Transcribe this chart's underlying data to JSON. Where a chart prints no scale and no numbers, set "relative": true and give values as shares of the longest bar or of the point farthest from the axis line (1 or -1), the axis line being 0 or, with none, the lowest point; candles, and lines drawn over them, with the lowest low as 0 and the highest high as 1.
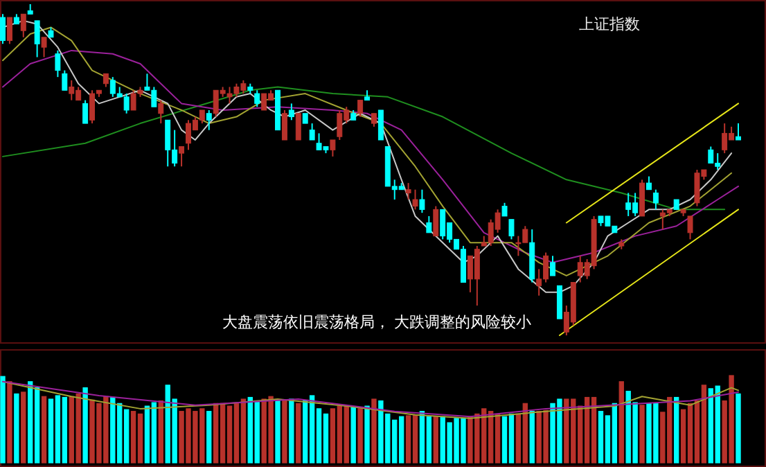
{
  "chart_data": [
    {
      "type": "candlestick",
      "title": "上证指数",
      "annotations": [
        "大盘震荡依旧震荡格局， 大跌调整的风险较小"
      ],
      "relative": true,
      "categories": [
        null,
        null,
        null,
        null,
        null,
        null,
        null,
        null,
        null,
        null,
        null,
        null,
        null,
        null,
        null,
        null,
        null,
        null,
        null,
        null,
        null,
        null,
        null,
        null,
        null,
        null,
        null,
        null,
        null,
        null,
        null,
        null,
        null,
        null,
        null,
        null,
        null,
        null,
        null,
        null,
        null,
        null,
        null,
        null,
        null,
        null,
        null,
        null,
        null,
        null,
        null,
        null,
        null,
        null,
        null,
        null,
        null,
        null,
        null,
        null,
        null,
        null,
        null,
        null,
        null,
        null,
        null,
        null,
        null,
        null,
        null,
        null,
        null,
        null,
        null,
        null,
        null,
        null,
        null,
        null,
        null,
        null,
        null,
        null,
        null,
        null,
        null,
        null,
        null,
        null,
        null,
        null,
        null,
        null,
        null,
        null,
        null,
        null,
        null,
        null,
        null,
        null,
        null,
        null,
        null,
        null,
        null,
        null
      ],
      "ohlc": [
        [
          0.96,
          0.97,
          0.88,
          0.89
        ],
        [
          0.89,
          0.96,
          0.88,
          0.96
        ],
        [
          0.96,
          0.97,
          0.94,
          0.94
        ],
        [
          0.92,
          0.97,
          0.9,
          0.97
        ],
        [
          0.98,
          1.0,
          0.97,
          0.97
        ],
        [
          0.95,
          0.95,
          0.84,
          0.88
        ],
        [
          0.87,
          0.9,
          0.84,
          0.9
        ],
        [
          0.92,
          0.93,
          0.9,
          0.9
        ],
        [
          0.85,
          0.86,
          0.78,
          0.8
        ],
        [
          0.79,
          0.8,
          0.74,
          0.74
        ],
        [
          0.73,
          0.77,
          0.71,
          0.75
        ],
        [
          0.71,
          0.75,
          0.71,
          0.74
        ],
        [
          0.7,
          0.71,
          0.64,
          0.64
        ],
        [
          0.65,
          0.74,
          0.64,
          0.73
        ],
        [
          0.73,
          0.74,
          0.72,
          0.74
        ],
        [
          0.76,
          0.79,
          0.75,
          0.79
        ],
        [
          0.77,
          0.78,
          0.72,
          0.73
        ],
        [
          0.73,
          0.75,
          0.72,
          0.72
        ],
        [
          0.72,
          0.73,
          0.67,
          0.68
        ],
        [
          0.68,
          0.74,
          0.68,
          0.73
        ],
        [
          0.73,
          0.75,
          0.72,
          0.74
        ],
        [
          0.75,
          0.79,
          0.74,
          0.74
        ],
        [
          0.74,
          0.75,
          0.69,
          0.69
        ],
        [
          0.67,
          0.71,
          0.64,
          0.7
        ],
        [
          0.65,
          0.65,
          0.51,
          0.56
        ],
        [
          0.56,
          0.62,
          0.51,
          0.52
        ],
        [
          0.55,
          0.57,
          0.51,
          0.57
        ],
        [
          0.58,
          0.65,
          0.56,
          0.64
        ],
        [
          0.62,
          0.66,
          0.62,
          0.65
        ],
        [
          0.65,
          0.68,
          0.64,
          0.68
        ],
        [
          0.67,
          0.68,
          0.62,
          0.65
        ],
        [
          0.67,
          0.74,
          0.66,
          0.74
        ],
        [
          0.73,
          0.75,
          0.72,
          0.74
        ],
        [
          0.72,
          0.75,
          0.7,
          0.73
        ],
        [
          0.73,
          0.76,
          0.72,
          0.75
        ],
        [
          0.74,
          0.77,
          0.73,
          0.76
        ],
        [
          0.75,
          0.76,
          0.73,
          0.74
        ],
        [
          0.73,
          0.74,
          0.69,
          0.7
        ],
        [
          0.68,
          0.73,
          0.68,
          0.73
        ],
        [
          0.71,
          0.74,
          0.71,
          0.73
        ],
        [
          0.74,
          0.74,
          0.62,
          0.62
        ],
        [
          0.59,
          0.68,
          0.59,
          0.67
        ],
        [
          0.68,
          0.7,
          0.65,
          0.66
        ],
        [
          0.59,
          0.67,
          0.59,
          0.67
        ],
        [
          0.67,
          0.67,
          0.64,
          0.64
        ],
        [
          0.62,
          0.64,
          0.59,
          0.59
        ],
        [
          0.58,
          0.61,
          0.56,
          0.56
        ],
        [
          0.57,
          0.57,
          0.55,
          0.56
        ],
        [
          0.56,
          0.59,
          0.54,
          0.59
        ],
        [
          0.6,
          0.68,
          0.59,
          0.67
        ],
        [
          0.65,
          0.69,
          0.64,
          0.68
        ],
        [
          0.67,
          0.68,
          0.65,
          0.65
        ],
        [
          0.67,
          0.71,
          0.66,
          0.71
        ],
        [
          0.72,
          0.74,
          0.71,
          0.71
        ],
        [
          0.64,
          0.67,
          0.63,
          0.67
        ],
        [
          0.68,
          0.68,
          0.59,
          0.59
        ],
        [
          0.57,
          0.57,
          0.45,
          0.45
        ],
        [
          0.45,
          0.47,
          0.41,
          0.44
        ],
        [
          0.45,
          0.46,
          0.44,
          0.44
        ],
        [
          0.43,
          0.46,
          0.41,
          0.44
        ],
        [
          0.39,
          0.44,
          0.38,
          0.41
        ],
        [
          0.41,
          0.44,
          0.37,
          0.38
        ],
        [
          0.34,
          0.36,
          0.31,
          0.31
        ],
        [
          0.3,
          0.39,
          0.3,
          0.38
        ],
        [
          0.38,
          0.38,
          0.29,
          0.3
        ],
        [
          0.34,
          0.34,
          0.28,
          0.29
        ],
        [
          0.29,
          0.29,
          0.26,
          0.26
        ],
        [
          0.26,
          0.27,
          0.16,
          0.16
        ],
        [
          0.17,
          0.24,
          0.13,
          0.24
        ],
        [
          0.17,
          0.27,
          0.09,
          0.26
        ],
        [
          0.27,
          0.3,
          0.27,
          0.28
        ],
        [
          0.28,
          0.35,
          0.27,
          0.34
        ],
        [
          0.32,
          0.38,
          0.31,
          0.37
        ],
        [
          0.39,
          0.4,
          0.36,
          0.36
        ],
        [
          0.35,
          0.35,
          0.29,
          0.3
        ],
        [
          0.28,
          0.3,
          0.24,
          0.28
        ],
        [
          0.28,
          0.33,
          0.28,
          0.32
        ],
        [
          0.28,
          0.32,
          0.16,
          0.17
        ],
        [
          0.15,
          0.2,
          0.12,
          0.17
        ],
        [
          0.17,
          0.25,
          0.16,
          0.24
        ],
        [
          0.22,
          0.24,
          0.18,
          0.18
        ],
        [
          0.15,
          0.15,
          0.05,
          0.05
        ],
        [
          0.01,
          0.09,
          0.0,
          0.07
        ],
        [
          0.04,
          0.16,
          0.03,
          0.16
        ],
        [
          0.18,
          0.24,
          0.16,
          0.22
        ],
        [
          0.18,
          0.23,
          0.17,
          0.22
        ],
        [
          0.21,
          0.36,
          0.2,
          0.35
        ],
        [
          0.36,
          0.36,
          0.33,
          0.34
        ],
        [
          0.36,
          0.36,
          0.33,
          0.33
        ],
        [
          0.33,
          0.33,
          0.31,
          0.31
        ],
        [
          0.27,
          0.29,
          0.26,
          0.28
        ],
        [
          0.4,
          0.43,
          0.36,
          0.38
        ],
        [
          0.4,
          0.43,
          0.36,
          0.37
        ],
        [
          0.36,
          0.47,
          0.36,
          0.46
        ],
        [
          0.46,
          0.48,
          0.44,
          0.44
        ],
        [
          0.43,
          0.44,
          0.38,
          0.4
        ],
        [
          0.36,
          0.38,
          0.32,
          0.37
        ],
        [
          0.37,
          0.38,
          0.36,
          0.38
        ],
        [
          0.41,
          0.41,
          0.38,
          0.38
        ],
        [
          0.37,
          0.38,
          0.36,
          0.38
        ],
        [
          0.31,
          0.36,
          0.29,
          0.36
        ],
        [
          0.4,
          0.5,
          0.39,
          0.49
        ],
        [
          0.48,
          0.5,
          0.47,
          0.5
        ],
        [
          0.56,
          0.57,
          0.52,
          0.52
        ],
        [
          0.52,
          0.55,
          0.5,
          0.51
        ],
        [
          0.56,
          0.64,
          0.55,
          0.61
        ],
        [
          0.59,
          0.63,
          0.59,
          0.61
        ],
        [
          0.6,
          0.64,
          0.59,
          0.59
        ]
      ],
      "colors": [
        "#00ffff",
        "#b8322b",
        "#00ffff",
        "#b8322b",
        "#00ffff",
        "#00ffff",
        "#b8322b",
        "#00ffff",
        "#00ffff",
        "#00ffff",
        "#b8322b",
        "#b8322b",
        "#00ffff",
        "#b8322b",
        "#b8322b",
        "#b8322b",
        "#00ffff",
        "#00ffff",
        "#00ffff",
        "#b8322b",
        "#b8322b",
        "#00ffff",
        "#00ffff",
        "#b8322b",
        "#00ffff",
        "#00ffff",
        "#b8322b",
        "#b8322b",
        "#b8322b",
        "#b8322b",
        "#00ffff",
        "#b8322b",
        "#b8322b",
        "#b8322b",
        "#b8322b",
        "#b8322b",
        "#00ffff",
        "#00ffff",
        "#b8322b",
        "#b8322b",
        "#00ffff",
        "#b8322b",
        "#00ffff",
        "#b8322b",
        "#00ffff",
        "#00ffff",
        "#00ffff",
        "#00ffff",
        "#b8322b",
        "#b8322b",
        "#b8322b",
        "#00ffff",
        "#b8322b",
        "#00ffff",
        "#b8322b",
        "#00ffff",
        "#00ffff",
        "#00ffff",
        "#00ffff",
        "#b8322b",
        "#b8322b",
        "#00ffff",
        "#00ffff",
        "#b8322b",
        "#00ffff",
        "#00ffff",
        "#00ffff",
        "#00ffff",
        "#b8322b",
        "#b8322b",
        "#b8322b",
        "#b8322b",
        "#b8322b",
        "#00ffff",
        "#00ffff",
        "#b8322b",
        "#b8322b",
        "#00ffff",
        "#b8322b",
        "#b8322b",
        "#00ffff",
        "#00ffff",
        "#b8322b",
        "#b8322b",
        "#b8322b",
        "#b8322b",
        "#b8322b",
        "#00ffff",
        "#00ffff",
        "#00ffff",
        "#b8322b",
        "#00ffff",
        "#00ffff",
        "#b8322b",
        "#00ffff",
        "#00ffff",
        "#b8322b",
        "#b8322b",
        "#00ffff",
        "#b8322b",
        "#b8322b",
        "#b8322b",
        "#b8322b",
        "#00ffff",
        "#00ffff",
        "#b8322b",
        "#b8322b",
        "#00ffff"
      ],
      "series": [
        {
          "type": "line",
          "color": "#1f8f1f",
          "values": [
            0.54,
            null,
            null,
            null,
            null,
            null,
            null,
            null,
            null,
            null,
            null,
            null,
            0.58,
            null,
            null,
            null,
            null,
            null,
            null,
            null,
            0.64,
            null,
            null,
            null,
            null,
            null,
            null,
            null,
            0.69,
            null,
            null,
            null,
            null,
            null,
            null,
            null,
            0.74,
            null,
            null,
            null,
            0.75,
            null,
            null,
            null,
            null,
            null,
            null,
            null,
            0.73,
            null,
            null,
            null,
            null,
            null,
            null,
            null,
            0.72,
            null,
            null,
            null,
            null,
            null,
            null,
            null,
            0.66,
            null,
            null,
            null,
            null,
            null,
            null,
            null,
            null,
            null,
            0.55,
            null,
            null,
            null,
            null,
            null,
            null,
            null,
            0.47,
            null,
            null,
            null,
            null,
            null,
            null,
            null,
            0.43,
            null,
            null,
            null,
            null,
            null,
            null,
            null,
            0.38,
            null,
            null,
            null,
            null,
            null,
            null,
            0.38,
            null,
            null
          ]
        },
        {
          "type": "line",
          "color": "#9b219b",
          "values": [
            0.75,
            null,
            null,
            null,
            0.82,
            null,
            null,
            null,
            null,
            null,
            0.86,
            null,
            null,
            null,
            null,
            null,
            0.85,
            null,
            null,
            null,
            0.82,
            null,
            null,
            null,
            null,
            null,
            0.7,
            null,
            null,
            null,
            null,
            null,
            0.68,
            null,
            null,
            null,
            null,
            null,
            null,
            null,
            0.69,
            null,
            null,
            null,
            null,
            null,
            null,
            null,
            0.68,
            null,
            null,
            null,
            null,
            0.67,
            null,
            null,
            null,
            null,
            0.62,
            null,
            null,
            null,
            null,
            null,
            0.47,
            null,
            null,
            null,
            null,
            null,
            0.31,
            null,
            null,
            null,
            null,
            null,
            0.25,
            null,
            null,
            null,
            0.22,
            null,
            null,
            null,
            null,
            null,
            0.25,
            null,
            null,
            null,
            null,
            null,
            0.3,
            null,
            null,
            null,
            null,
            null,
            0.33,
            null,
            null,
            null,
            null,
            null,
            0.41,
            null,
            null,
            0.45
          ]
        },
        {
          "type": "line",
          "color": "#a3a332",
          "values": [
            0.83,
            null,
            null,
            null,
            0.91,
            null,
            null,
            0.93,
            null,
            null,
            0.89,
            null,
            null,
            0.8,
            null,
            null,
            0.77,
            null,
            null,
            null,
            0.73,
            null,
            null,
            null,
            null,
            null,
            0.68,
            null,
            null,
            null,
            0.64,
            null,
            null,
            null,
            0.66,
            null,
            null,
            null,
            0.71,
            null,
            null,
            null,
            null,
            null,
            0.73,
            null,
            null,
            null,
            null,
            null,
            0.68,
            null,
            null,
            null,
            null,
            0.64,
            null,
            null,
            null,
            null,
            0.51,
            null,
            null,
            null,
            0.39,
            null,
            null,
            null,
            0.28,
            null,
            null,
            null,
            null,
            null,
            0.28,
            null,
            null,
            null,
            0.22,
            null,
            null,
            null,
            0.18,
            null,
            null,
            null,
            null,
            null,
            0.24,
            null,
            null,
            null,
            null,
            null,
            0.34,
            null,
            null,
            null,
            null,
            null,
            0.39,
            null,
            null,
            null,
            null,
            null,
            0.49,
            null
          ]
        },
        {
          "type": "line",
          "color": "#c8c8c8",
          "values": [
            0.93,
            null,
            null,
            0.95,
            null,
            0.94,
            null,
            null,
            0.87,
            null,
            null,
            0.76,
            null,
            null,
            0.7,
            null,
            null,
            0.72,
            null,
            null,
            0.74,
            null,
            null,
            null,
            0.7,
            null,
            0.62,
            null,
            0.59,
            null,
            0.64,
            null,
            null,
            null,
            0.72,
            null,
            0.73,
            null,
            null,
            0.68,
            null,
            0.66,
            null,
            null,
            0.68,
            null,
            null,
            null,
            0.62,
            null,
            null,
            null,
            0.67,
            null,
            null,
            0.64,
            null,
            null,
            0.47,
            null,
            0.36,
            null,
            null,
            null,
            0.28,
            null,
            null,
            0.22,
            null,
            0.24,
            null,
            null,
            0.3,
            null,
            null,
            0.2,
            null,
            null,
            null,
            0.13,
            null,
            0.13,
            null,
            0.15,
            null,
            null,
            0.22,
            null,
            0.3,
            null,
            null,
            0.34,
            null,
            null,
            0.38,
            null,
            null,
            0.38,
            null,
            null,
            0.41,
            null,
            null,
            0.47,
            null,
            null,
            0.55,
            null
          ]
        },
        {
          "type": "line",
          "color": "#e6e619",
          "values": [
            null,
            null,
            null,
            null,
            null,
            null,
            null,
            null,
            null,
            null,
            null,
            null,
            null,
            null,
            null,
            null,
            null,
            null,
            null,
            null,
            null,
            null,
            null,
            null,
            null,
            null,
            null,
            null,
            null,
            null,
            null,
            null,
            null,
            null,
            null,
            null,
            null,
            null,
            null,
            null,
            null,
            null,
            null,
            null,
            null,
            null,
            null,
            null,
            null,
            null,
            null,
            null,
            null,
            null,
            null,
            null,
            null,
            null,
            null,
            null,
            null,
            null,
            null,
            null,
            null,
            null,
            null,
            null,
            null,
            null,
            null,
            null,
            null,
            null,
            null,
            null,
            null,
            null,
            null,
            null,
            null,
            null,
            0.34,
            null,
            null,
            null,
            null,
            null,
            null,
            null,
            null,
            null,
            null,
            null,
            null,
            null,
            null,
            null,
            null,
            null,
            null,
            null,
            null,
            null,
            null,
            null,
            null,
            0.7
          ]
        },
        {
          "type": "line",
          "color": "#e6e619",
          "values": [
            null,
            null,
            null,
            null,
            null,
            null,
            null,
            null,
            null,
            null,
            null,
            null,
            null,
            null,
            null,
            null,
            null,
            null,
            null,
            null,
            null,
            null,
            null,
            null,
            null,
            null,
            null,
            null,
            null,
            null,
            null,
            null,
            null,
            null,
            null,
            null,
            null,
            null,
            null,
            null,
            null,
            null,
            null,
            null,
            null,
            null,
            null,
            null,
            null,
            null,
            null,
            null,
            null,
            null,
            null,
            null,
            null,
            null,
            null,
            null,
            null,
            null,
            null,
            null,
            null,
            null,
            null,
            null,
            null,
            null,
            null,
            null,
            null,
            null,
            null,
            null,
            null,
            null,
            null,
            null,
            null,
            0.0,
            null,
            null,
            null,
            null,
            null,
            null,
            null,
            null,
            null,
            null,
            null,
            null,
            null,
            null,
            null,
            null,
            null,
            null,
            null,
            null,
            null,
            null,
            null,
            null,
            null,
            0.38
          ]
        }
      ]
    },
    {
      "type": "bar",
      "relative": true,
      "categories": [
        null,
        null,
        null,
        null,
        null,
        null,
        null,
        null,
        null,
        null,
        null,
        null,
        null,
        null,
        null,
        null,
        null,
        null,
        null,
        null,
        null,
        null,
        null,
        null,
        null,
        null,
        null,
        null,
        null,
        null,
        null,
        null,
        null,
        null,
        null,
        null,
        null,
        null,
        null,
        null,
        null,
        null,
        null,
        null,
        null,
        null,
        null,
        null,
        null,
        null,
        null,
        null,
        null,
        null,
        null,
        null,
        null,
        null,
        null,
        null,
        null,
        null,
        null,
        null,
        null,
        null,
        null,
        null,
        null,
        null,
        null,
        null,
        null,
        null,
        null,
        null,
        null,
        null,
        null,
        null,
        null,
        null,
        null,
        null,
        null,
        null,
        null,
        null,
        null,
        null,
        null,
        null,
        null,
        null,
        null,
        null,
        null,
        null,
        null,
        null,
        null,
        null,
        null,
        null,
        null,
        null,
        null,
        null
      ],
      "series": [
        {
          "type": "bar",
          "values": [
            0.99,
            0.93,
            0.79,
            0.81,
            0.93,
            0.86,
            0.76,
            0.73,
            0.77,
            0.75,
            0.76,
            0.79,
            0.86,
            0.72,
            0.68,
            0.76,
            0.75,
            0.68,
            0.61,
            0.59,
            0.56,
            0.65,
            0.69,
            0.71,
            0.89,
            0.73,
            0.59,
            0.62,
            0.59,
            0.62,
            0.59,
            0.68,
            0.68,
            0.65,
            0.68,
            0.73,
            0.75,
            0.71,
            0.73,
            0.76,
            0.71,
            0.71,
            0.73,
            0.68,
            0.71,
            0.77,
            0.62,
            0.56,
            0.62,
            0.65,
            0.65,
            0.64,
            0.62,
            0.65,
            0.73,
            0.71,
            0.56,
            0.49,
            0.53,
            0.54,
            0.55,
            0.59,
            0.53,
            0.53,
            0.53,
            0.46,
            0.51,
            0.51,
            0.53,
            0.56,
            0.62,
            0.59,
            0.56,
            0.53,
            0.56,
            0.56,
            0.68,
            0.59,
            0.59,
            0.6,
            0.68,
            0.73,
            0.73,
            0.73,
            0.65,
            0.75,
            0.75,
            0.59,
            0.54,
            0.68,
            0.93,
            0.82,
            0.69,
            0.66,
            0.68,
            0.68,
            0.58,
            0.75,
            0.75,
            0.61,
            0.68,
            0.71,
            0.89,
            0.85,
            0.88,
            0.71,
            1.0,
            0.79
          ],
          "colors": [
            "#00ffff",
            "#b8322b",
            "#00ffff",
            "#b8322b",
            "#00ffff",
            "#00ffff",
            "#b8322b",
            "#00ffff",
            "#00ffff",
            "#00ffff",
            "#b8322b",
            "#b8322b",
            "#00ffff",
            "#b8322b",
            "#b8322b",
            "#b8322b",
            "#00ffff",
            "#00ffff",
            "#00ffff",
            "#b8322b",
            "#b8322b",
            "#00ffff",
            "#00ffff",
            "#b8322b",
            "#00ffff",
            "#00ffff",
            "#b8322b",
            "#b8322b",
            "#b8322b",
            "#b8322b",
            "#00ffff",
            "#b8322b",
            "#b8322b",
            "#b8322b",
            "#b8322b",
            "#b8322b",
            "#00ffff",
            "#00ffff",
            "#b8322b",
            "#b8322b",
            "#00ffff",
            "#b8322b",
            "#00ffff",
            "#b8322b",
            "#00ffff",
            "#00ffff",
            "#00ffff",
            "#00ffff",
            "#b8322b",
            "#b8322b",
            "#b8322b",
            "#00ffff",
            "#b8322b",
            "#00ffff",
            "#b8322b",
            "#00ffff",
            "#00ffff",
            "#00ffff",
            "#00ffff",
            "#b8322b",
            "#b8322b",
            "#00ffff",
            "#00ffff",
            "#b8322b",
            "#00ffff",
            "#00ffff",
            "#00ffff",
            "#00ffff",
            "#b8322b",
            "#b8322b",
            "#b8322b",
            "#b8322b",
            "#b8322b",
            "#00ffff",
            "#00ffff",
            "#b8322b",
            "#b8322b",
            "#00ffff",
            "#b8322b",
            "#b8322b",
            "#00ffff",
            "#00ffff",
            "#b8322b",
            "#b8322b",
            "#b8322b",
            "#b8322b",
            "#b8322b",
            "#00ffff",
            "#00ffff",
            "#00ffff",
            "#b8322b",
            "#00ffff",
            "#00ffff",
            "#b8322b",
            "#00ffff",
            "#00ffff",
            "#b8322b",
            "#b8322b",
            "#00ffff",
            "#b8322b",
            "#b8322b",
            "#b8322b",
            "#b8322b",
            "#00ffff",
            "#00ffff",
            "#b8322b",
            "#b8322b",
            "#00ffff"
          ]
        },
        {
          "type": "line",
          "color": "#a3a332",
          "values": [
            0.93,
            null,
            null,
            null,
            null,
            null,
            null,
            null,
            null,
            null,
            0.76,
            null,
            null,
            null,
            null,
            null,
            null,
            null,
            null,
            null,
            0.62,
            null,
            null,
            null,
            null,
            null,
            null,
            null,
            null,
            null,
            0.66,
            null,
            null,
            null,
            null,
            null,
            null,
            null,
            null,
            null,
            0.73,
            null,
            null,
            null,
            null,
            null,
            null,
            null,
            null,
            null,
            0.65,
            null,
            null,
            null,
            null,
            null,
            null,
            null,
            null,
            null,
            0.55,
            null,
            null,
            null,
            null,
            null,
            null,
            null,
            0.51,
            null,
            null,
            null,
            null,
            null,
            null,
            null,
            null,
            null,
            null,
            0.59,
            null,
            null,
            null,
            null,
            null,
            null,
            null,
            null,
            null,
            0.65,
            null,
            null,
            null,
            0.76,
            null,
            null,
            null,
            null,
            null,
            null,
            0.66,
            null,
            null,
            null,
            null,
            null,
            0.86,
            0.83
          ]
        },
        {
          "type": "line",
          "color": "#9b219b",
          "values": [
            0.93,
            null,
            null,
            null,
            null,
            null,
            null,
            null,
            null,
            null,
            null,
            null,
            null,
            null,
            0.77,
            null,
            null,
            null,
            null,
            null,
            null,
            null,
            null,
            null,
            null,
            null,
            null,
            null,
            0.66,
            null,
            null,
            null,
            null,
            null,
            null,
            null,
            null,
            null,
            null,
            null,
            null,
            null,
            null,
            0.73,
            null,
            null,
            null,
            null,
            null,
            null,
            null,
            null,
            null,
            null,
            null,
            null,
            null,
            0.59,
            null,
            null,
            null,
            null,
            null,
            null,
            null,
            null,
            null,
            null,
            0.53,
            null,
            null,
            null,
            null,
            null,
            null,
            null,
            null,
            null,
            null,
            0.62,
            null,
            null,
            null,
            null,
            null,
            null,
            null,
            null,
            null,
            null,
            null,
            null,
            null,
            0.68,
            null,
            null,
            null,
            null,
            null,
            null,
            0.71,
            null,
            null,
            null,
            null,
            null,
            null,
            0.81
          ]
        }
      ]
    }
  ]
}
